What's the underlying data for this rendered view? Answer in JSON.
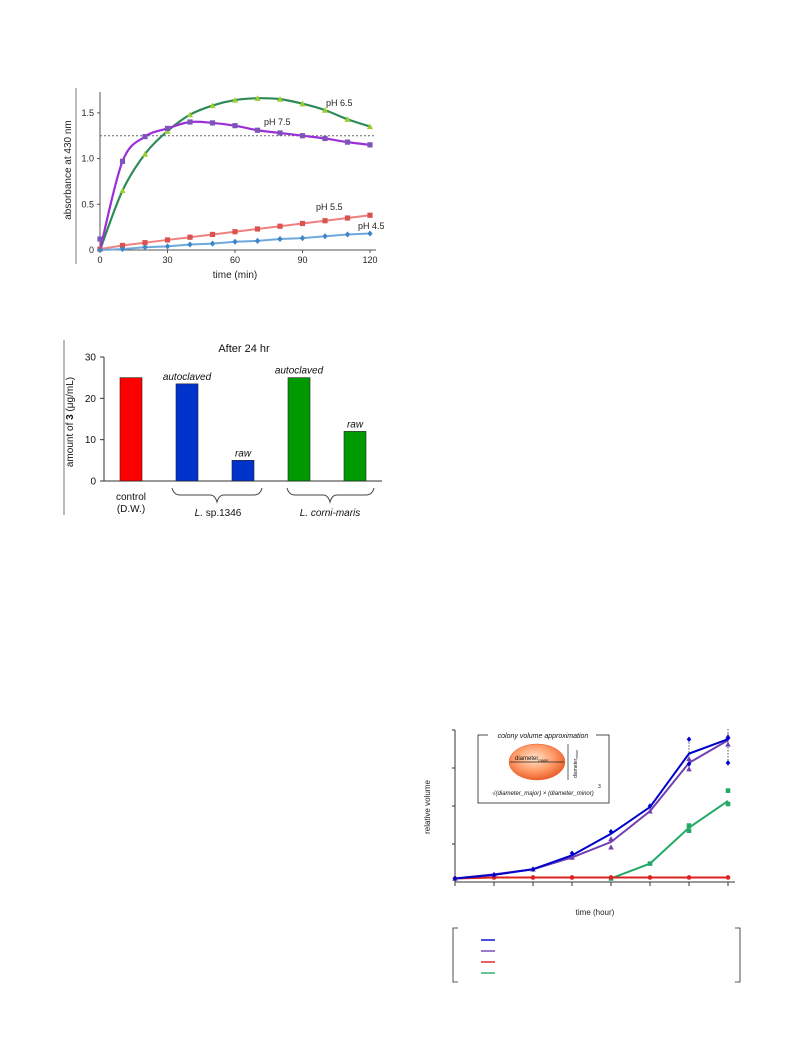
{
  "chart_data": [
    {
      "type": "line",
      "title": "",
      "xlabel": "time (min)",
      "ylabel": "absorbance at 430 nm",
      "xlim": [
        0,
        120
      ],
      "ylim": [
        0,
        1.75
      ],
      "x_ticks": [
        "0",
        "30",
        "60",
        "90",
        "120"
      ],
      "y_ticks": [
        "0",
        "0.5",
        "1.0",
        "1.5"
      ],
      "reference_line": {
        "y": 1.25,
        "style": "dotted"
      },
      "series": [
        {
          "name": "pH 6.5",
          "color": "#2e8b57",
          "marker_color": "#9acd32",
          "marker": "triangle",
          "x": [
            10,
            20,
            30,
            40,
            50,
            60,
            70,
            80,
            90,
            100,
            110,
            120
          ],
          "y": [
            0.65,
            1.05,
            1.3,
            1.48,
            1.58,
            1.64,
            1.66,
            1.65,
            1.6,
            1.53,
            1.43,
            1.35
          ]
        },
        {
          "name": "pH 7.5",
          "color": "#9b30d9",
          "marker_color": "#7b55b8",
          "marker": "square",
          "x": [
            0,
            10,
            20,
            30,
            40,
            50,
            60,
            70,
            80,
            90,
            100,
            110,
            120
          ],
          "y": [
            0.12,
            0.97,
            1.24,
            1.33,
            1.4,
            1.39,
            1.36,
            1.31,
            1.28,
            1.25,
            1.22,
            1.18,
            1.15
          ]
        },
        {
          "name": "pH 5.5",
          "color": "#f08080",
          "marker_color": "#d9534f",
          "marker": "square",
          "x": [
            0,
            10,
            20,
            30,
            40,
            50,
            60,
            70,
            80,
            90,
            100,
            110,
            120
          ],
          "y": [
            0.01,
            0.05,
            0.08,
            0.11,
            0.14,
            0.17,
            0.2,
            0.23,
            0.26,
            0.29,
            0.32,
            0.35,
            0.38
          ]
        },
        {
          "name": "pH 4.5",
          "color": "#6fa8dc",
          "marker_color": "#3d85c6",
          "marker": "diamond",
          "x": [
            0,
            10,
            20,
            30,
            40,
            50,
            60,
            70,
            80,
            90,
            100,
            110,
            120
          ],
          "y": [
            0.0,
            0.01,
            0.03,
            0.04,
            0.06,
            0.07,
            0.09,
            0.1,
            0.12,
            0.13,
            0.15,
            0.17,
            0.18
          ]
        }
      ]
    },
    {
      "type": "bar",
      "title": "After 24 hr",
      "ylabel_pre": "amount of ",
      "ylabel_bold": "3",
      "ylabel_post": " (μg/mL)",
      "ylim": [
        0,
        30
      ],
      "y_ticks": [
        "0",
        "10",
        "20",
        "30"
      ],
      "bars": [
        {
          "value": 25,
          "color": "#ff0000",
          "label": ""
        },
        {
          "value": 23.5,
          "color": "#0033cc",
          "label": "autoclaved"
        },
        {
          "value": 5,
          "color": "#0033cc",
          "label": "raw"
        },
        {
          "value": 25,
          "color": "#009900",
          "label": "autoclaved"
        },
        {
          "value": 12,
          "color": "#009900",
          "label": "raw"
        }
      ],
      "group_labels": {
        "control_line1": "control",
        "control_line2": "(D.W.)",
        "group1_prefix": "L.",
        "group1_suffix": " sp.1346",
        "group2": "L. corni-maris"
      }
    },
    {
      "type": "line",
      "xlabel": "time (hour)",
      "ylabel": "relative volume",
      "inset_title": "colony volume approximation",
      "inset_major_base": "diameter",
      "inset_major_sub": "major",
      "inset_minor_base": "diameter",
      "inset_minor_sub": "minor",
      "formula": "√(diameter_major) × (diameter_minor)",
      "formula_exponent": "3",
      "series": [
        {
          "color": "#0000cc",
          "marker": "diamond",
          "x": [
            0,
            1,
            2,
            3,
            4,
            5,
            6,
            7
          ],
          "y": [
            0.05,
            0.4,
            0.95,
            2.3,
            4.4,
            7.0,
            12.2,
            13.6
          ],
          "points": [
            [
              0,
              0.05
            ],
            [
              1,
              0.4
            ],
            [
              2,
              0.95
            ],
            [
              3,
              2.5
            ],
            [
              4,
              4.6
            ],
            [
              5,
              7.1
            ],
            [
              6,
              11.2
            ],
            [
              6,
              13.6
            ],
            [
              7,
              13.7
            ],
            [
              7,
              11.3
            ]
          ]
        },
        {
          "color": "#7040b0",
          "marker": "triangle",
          "x": [
            0,
            1,
            2,
            3,
            4,
            5,
            6,
            7
          ],
          "y": [
            0.05,
            0.45,
            0.95,
            2.1,
            3.6,
            6.6,
            11.3,
            13.5
          ],
          "points": [
            [
              0,
              0.05
            ],
            [
              1,
              0.45
            ],
            [
              2,
              0.95
            ],
            [
              3,
              2.1
            ],
            [
              4,
              3.9
            ],
            [
              4,
              3.1
            ],
            [
              5,
              6.6
            ],
            [
              6,
              10.7
            ],
            [
              6,
              11.7
            ],
            [
              7,
              13.1
            ],
            [
              7,
              13.9
            ]
          ]
        },
        {
          "color": "#dd2222",
          "marker": "circle",
          "x": [
            0,
            1,
            2,
            3,
            4,
            5,
            6,
            7
          ],
          "y": [
            0.05,
            0.15,
            0.15,
            0.15,
            0.15,
            0.15,
            0.15,
            0.15
          ],
          "points": [
            [
              0,
              0.05
            ],
            [
              1,
              0.15
            ],
            [
              2,
              0.15
            ],
            [
              3,
              0.15
            ],
            [
              4,
              0.15
            ],
            [
              5,
              0.15
            ],
            [
              6,
              0.15
            ],
            [
              7,
              0.15
            ]
          ]
        },
        {
          "color": "#22aa66",
          "marker": "square",
          "x": [
            4,
            5,
            6,
            7
          ],
          "y": [
            0.05,
            1.5,
            5.0,
            7.6
          ],
          "points": [
            [
              4,
              0.05
            ],
            [
              5,
              1.5
            ],
            [
              6,
              5.2
            ],
            [
              6,
              4.7
            ],
            [
              7,
              8.6
            ],
            [
              7,
              7.3
            ]
          ]
        }
      ],
      "legend_colors": [
        "#0000cc",
        "#7040b0",
        "#dd2222",
        "#22aa66"
      ]
    }
  ]
}
